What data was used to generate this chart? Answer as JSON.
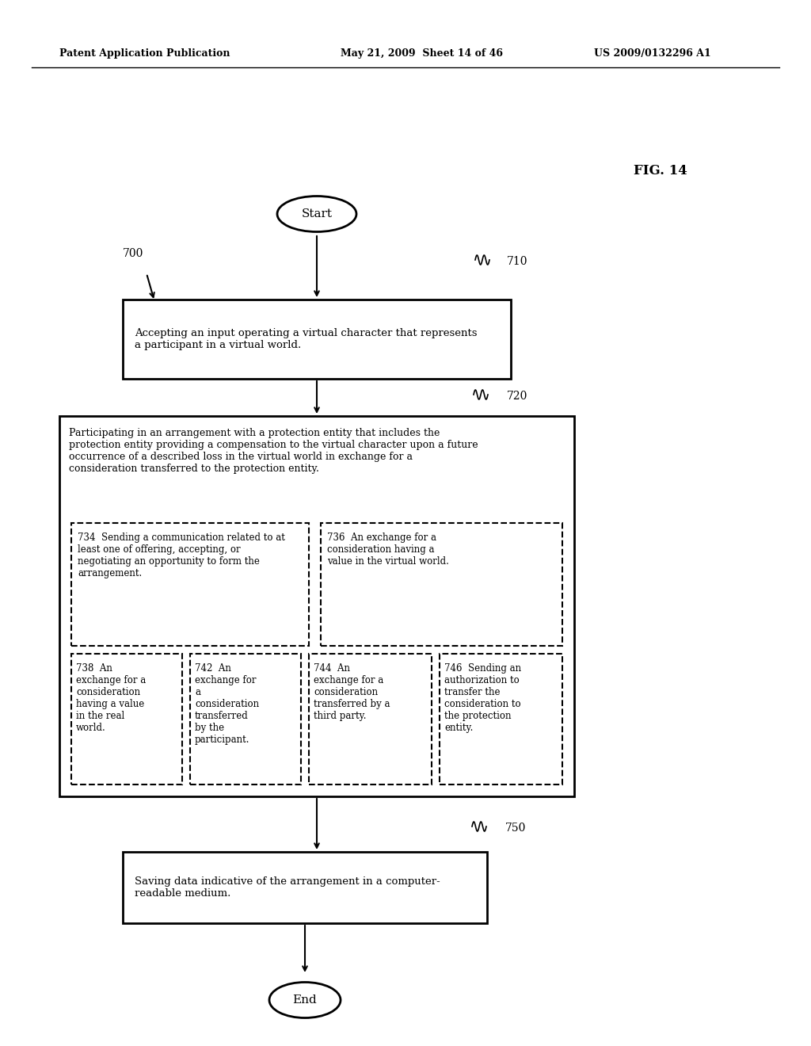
{
  "header_left": "Patent Application Publication",
  "header_center": "May 21, 2009  Sheet 14 of 46",
  "header_right": "US 2009/0132296 A1",
  "fig_label": "FIG. 14",
  "start_label": "Start",
  "end_label": "End",
  "label_700": "700",
  "label_710": "710",
  "label_720": "720",
  "label_750": "750",
  "box_710_text": "Accepting an input operating a virtual character that represents\na participant in a virtual world.",
  "box_720_text": "Participating in an arrangement with a protection entity that includes the\nprotection entity providing a compensation to the virtual character upon a future\noccurrence of a described loss in the virtual world in exchange for a\nconsideration transferred to the protection entity.",
  "box_734_text": "734  Sending a communication related to at\nleast one of offering, accepting, or\nnegotiating an opportunity to form the\narrangement.",
  "box_736_text": "736  An exchange for a\nconsideration having a\nvalue in the virtual world.",
  "box_738_text": "738  An\nexchange for a\nconsideration\nhaving a value\nin the real\nworld.",
  "box_742_text": "742  An\nexchange for\na\nconsideration\ntransferred\nby the\nparticipant.",
  "box_744_text": "744  An\nexchange for a\nconsideration\ntransferred by a\nthird party.",
  "box_746_text": "746  Sending an\nauthorization to\ntransfer the\nconsideration to\nthe protection\nentity.",
  "box_750_text": "Saving data indicative of the arrangement in a computer-\nreadable medium.",
  "bg_color": "#ffffff",
  "text_color": "#000000",
  "box_color": "#ffffff",
  "box_edge_color": "#000000"
}
